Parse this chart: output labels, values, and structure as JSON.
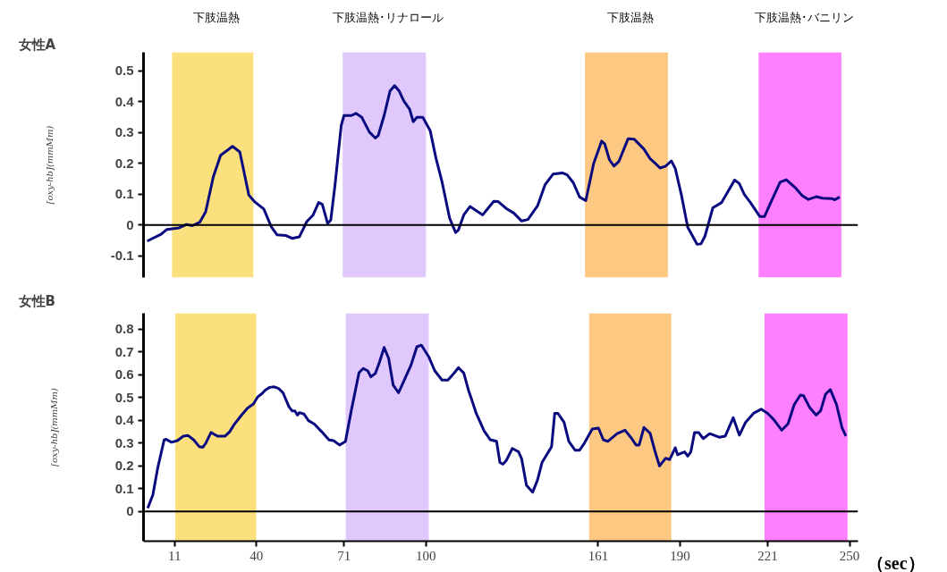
{
  "chart_data": [
    {
      "type": "line",
      "title": "女性A",
      "ylabel": "[oxy-hb](mmMm)",
      "xlim": [
        0,
        253
      ],
      "ylim": [
        -0.17,
        0.56
      ],
      "yticks": [
        -0.1,
        0,
        0.1,
        0.2,
        0.3,
        0.4,
        0.5
      ],
      "tick_labels": "y",
      "grid": false,
      "ref_lines": [
        {
          "axis": "y",
          "value": 0,
          "color": "#000000"
        }
      ],
      "bands": [
        {
          "axis": "x",
          "from": 10.1,
          "to": 38.9,
          "label": "下肢温熱",
          "color": "#fde07e"
        },
        {
          "axis": "x",
          "from": 70.5,
          "to": 100.0,
          "label": "下肢温熱･リナロール",
          "color": "#e0c8fc"
        },
        {
          "axis": "x",
          "from": 156.3,
          "to": 185.7,
          "label": "下肢温熱",
          "color": "#fdc882"
        },
        {
          "axis": "x",
          "from": 217.8,
          "to": 247.1,
          "label": "下肢温熱･バニリン",
          "color": "#ff80ff"
        }
      ],
      "series": [
        {
          "color": "#0a0a80",
          "x": [
            1.3,
            6.2,
            8.3,
            12.6,
            15.2,
            17.3,
            19.9,
            22.0,
            24.7,
            27.3,
            31.5,
            34.1,
            37.3,
            39.4,
            42.6,
            45.2,
            47.3,
            50.5,
            52.6,
            55.2,
            57.8,
            60.0,
            62.0,
            63.3,
            65.2,
            66.3,
            67.8,
            70.0,
            71.0,
            73.6,
            75.2,
            77.3,
            80.0,
            82.1,
            83.1,
            85.2,
            87.3,
            88.9,
            90.5,
            92.1,
            94.2,
            95.5,
            96.8,
            98.9,
            101.5,
            103.6,
            105.7,
            108.4,
            110.5,
            111.5,
            113.4,
            115.6,
            120.1,
            124.0,
            125.6,
            128.4,
            131.1,
            133.9,
            136.1,
            139.5,
            142.2,
            145.0,
            148.3,
            150.0,
            152.2,
            154.4,
            156.6,
            159.4,
            162.2,
            163.3,
            165.0,
            166.6,
            168.3,
            171.6,
            173.8,
            177.2,
            179.4,
            181.0,
            182.9,
            184.9,
            186.9,
            188.3,
            190.5,
            192.7,
            196.0,
            197.4,
            198.8,
            201.6,
            204.7,
            209.3,
            211.0,
            212.7,
            214.9,
            218.2,
            219.9,
            222.1,
            225.4,
            227.6,
            231.0,
            233.2,
            235.4,
            238.2,
            240.4,
            243.7,
            244.8,
            246.5
          ],
          "values": [
            -0.052,
            -0.03,
            -0.014,
            -0.009,
            0.002,
            -0.002,
            0.009,
            0.043,
            0.156,
            0.226,
            0.255,
            0.237,
            0.097,
            0.075,
            0.052,
            -0.005,
            -0.032,
            -0.034,
            -0.043,
            -0.038,
            0.011,
            0.032,
            0.073,
            0.067,
            0.005,
            0.016,
            0.129,
            0.323,
            0.355,
            0.355,
            0.362,
            0.349,
            0.301,
            0.282,
            0.29,
            0.355,
            0.435,
            0.452,
            0.435,
            0.403,
            0.376,
            0.335,
            0.349,
            0.349,
            0.306,
            0.215,
            0.14,
            0.022,
            -0.024,
            -0.016,
            0.033,
            0.06,
            0.033,
            0.077,
            0.076,
            0.054,
            0.039,
            0.013,
            0.018,
            0.062,
            0.131,
            0.165,
            0.169,
            0.163,
            0.137,
            0.091,
            0.079,
            0.2,
            0.272,
            0.263,
            0.211,
            0.191,
            0.206,
            0.28,
            0.278,
            0.246,
            0.215,
            0.202,
            0.185,
            0.191,
            0.208,
            0.183,
            0.096,
            -0.007,
            -0.062,
            -0.061,
            -0.036,
            0.056,
            0.073,
            0.146,
            0.134,
            0.1,
            0.073,
            0.028,
            0.028,
            0.073,
            0.139,
            0.147,
            0.119,
            0.096,
            0.083,
            0.092,
            0.087,
            0.086,
            0.082,
            0.091
          ]
        }
      ]
    },
    {
      "type": "line",
      "title": "女性B",
      "ylabel": "[oxy-hb](mmMm)",
      "xlabel": "（sec）",
      "xlim": [
        0,
        253
      ],
      "ylim": [
        -0.13,
        0.87
      ],
      "xticks": [
        11,
        40,
        71,
        100,
        161,
        190,
        221,
        250
      ],
      "yticks": [
        0,
        0.1,
        0.2,
        0.3,
        0.4,
        0.5,
        0.6,
        0.7,
        0.8
      ],
      "grid": false,
      "ref_lines": [
        {
          "axis": "y",
          "value": 0,
          "color": "#000000"
        }
      ],
      "bands": [
        {
          "axis": "x",
          "from": 11.2,
          "to": 39.9,
          "color": "#fde07e"
        },
        {
          "axis": "x",
          "from": 71.6,
          "to": 101.0,
          "color": "#e0c8fc"
        },
        {
          "axis": "x",
          "from": 157.8,
          "to": 186.9,
          "color": "#fdc882"
        },
        {
          "axis": "x",
          "from": 219.9,
          "to": 249.3,
          "color": "#ff80ff"
        }
      ],
      "series": [
        {
          "color": "#0a0a80",
          "x": [
            1.5,
            3.3,
            5.0,
            7.3,
            8.0,
            9.9,
            12.0,
            14.1,
            15.7,
            17.8,
            19.7,
            21.0,
            22.0,
            23.9,
            26.2,
            28.9,
            30.5,
            32.0,
            34.7,
            36.8,
            38.9,
            40.5,
            42.0,
            43.1,
            44.7,
            46.3,
            47.8,
            49.4,
            51.5,
            52.6,
            53.6,
            54.5,
            55.2,
            56.8,
            58.4,
            60.5,
            63.1,
            65.7,
            67.3,
            69.4,
            71.5,
            73.6,
            76.3,
            77.8,
            79.4,
            80.5,
            82.1,
            83.6,
            85.2,
            86.8,
            88.4,
            90.3,
            92.6,
            94.7,
            96.8,
            98.4,
            101.0,
            103.1,
            105.7,
            107.8,
            109.4,
            111.5,
            113.4,
            115.1,
            116.2,
            117.8,
            120.6,
            122.8,
            125.0,
            126.2,
            127.3,
            128.4,
            130.6,
            132.8,
            133.9,
            135.6,
            137.8,
            139.5,
            141.1,
            144.5,
            145.6,
            146.7,
            148.9,
            150.6,
            152.8,
            154.4,
            156.1,
            158.9,
            161.1,
            162.8,
            164.4,
            167.7,
            170.5,
            172.7,
            174.4,
            175.5,
            177.2,
            179.4,
            181.0,
            182.7,
            184.9,
            186.3,
            188.3,
            189.1,
            191.6,
            192.7,
            193.8,
            195.1,
            196.6,
            198.2,
            200.5,
            203.8,
            206.0,
            208.8,
            211.0,
            213.2,
            216.0,
            218.7,
            221.0,
            223.2,
            226.0,
            228.2,
            230.4,
            232.6,
            233.7,
            236.0,
            238.2,
            239.8,
            241.5,
            243.2,
            245.4,
            247.3,
            248.7
          ],
          "values": [
            0.015,
            0.073,
            0.19,
            0.314,
            0.317,
            0.304,
            0.311,
            0.331,
            0.334,
            0.314,
            0.285,
            0.282,
            0.299,
            0.347,
            0.331,
            0.331,
            0.35,
            0.38,
            0.423,
            0.453,
            0.472,
            0.504,
            0.518,
            0.533,
            0.545,
            0.547,
            0.54,
            0.521,
            0.46,
            0.442,
            0.442,
            0.423,
            0.434,
            0.428,
            0.399,
            0.384,
            0.35,
            0.314,
            0.311,
            0.292,
            0.307,
            0.445,
            0.609,
            0.628,
            0.617,
            0.591,
            0.606,
            0.657,
            0.72,
            0.672,
            0.555,
            0.521,
            0.584,
            0.642,
            0.723,
            0.73,
            0.679,
            0.618,
            0.577,
            0.577,
            0.599,
            0.631,
            0.608,
            0.531,
            0.492,
            0.431,
            0.354,
            0.315,
            0.308,
            0.215,
            0.208,
            0.223,
            0.277,
            0.262,
            0.231,
            0.115,
            0.085,
            0.138,
            0.215,
            0.285,
            0.431,
            0.431,
            0.392,
            0.308,
            0.269,
            0.269,
            0.3,
            0.362,
            0.366,
            0.315,
            0.308,
            0.342,
            0.357,
            0.323,
            0.292,
            0.292,
            0.369,
            0.343,
            0.269,
            0.2,
            0.234,
            0.228,
            0.28,
            0.249,
            0.262,
            0.243,
            0.262,
            0.346,
            0.346,
            0.32,
            0.342,
            0.326,
            0.331,
            0.412,
            0.335,
            0.392,
            0.431,
            0.449,
            0.431,
            0.403,
            0.357,
            0.385,
            0.469,
            0.511,
            0.508,
            0.454,
            0.423,
            0.443,
            0.515,
            0.535,
            0.469,
            0.369,
            0.331
          ]
        }
      ]
    }
  ]
}
